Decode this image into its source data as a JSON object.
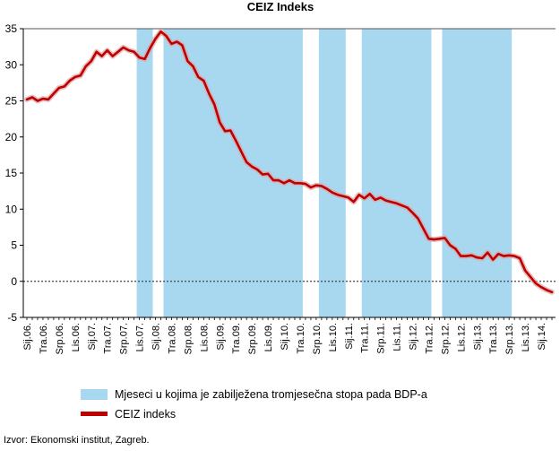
{
  "chart_data": {
    "type": "line",
    "title": "CEIZ Indeks",
    "xlabel": "",
    "ylabel": "",
    "ylim": [
      -5,
      35
    ],
    "yticks": [
      -5,
      0,
      5,
      10,
      15,
      20,
      25,
      30,
      35
    ],
    "grid": "horizontal dashed at 0, top border",
    "legend_position": "bottom",
    "x_tick_labels": [
      "Sij.06.",
      "Tra.06.",
      "Srp.06.",
      "Lis.06.",
      "Sij.07.",
      "Tra.07.",
      "Srp.07.",
      "Lis.07.",
      "Sij.08.",
      "Tra.08.",
      "Srp.08.",
      "Lis.08.",
      "Sij.09.",
      "Tra.09.",
      "Srp.09.",
      "Lis.09.",
      "Sij.10.",
      "Tra.10.",
      "Srp.10.",
      "Lis.10.",
      "Sij.11.",
      "Tra.11.",
      "Srp.11.",
      "Lis.11.",
      "Sij.12.",
      "Tra.12.",
      "Srp.12.",
      "Lis.12.",
      "Sij.13.",
      "Tra.13.",
      "Srp.13.",
      "Lis.13.",
      "Sij.14."
    ],
    "x_labels_monthly_every": 3,
    "recession_shading": [
      {
        "from_month_index": 21,
        "to_month_index": 23
      },
      {
        "from_month_index": 26,
        "to_month_index": 51
      },
      {
        "from_month_index": 55,
        "to_month_index": 59
      },
      {
        "from_month_index": 63,
        "to_month_index": 75
      },
      {
        "from_month_index": 78,
        "to_month_index": 90
      }
    ],
    "series": [
      {
        "name": "CEIZ indeks",
        "color": "#c00000",
        "values": [
          25.2,
          25.5,
          25.0,
          25.3,
          25.2,
          26.0,
          26.8,
          27.0,
          27.8,
          28.3,
          28.5,
          29.8,
          30.5,
          31.8,
          31.2,
          32.0,
          31.2,
          31.8,
          32.4,
          32.0,
          31.8,
          31.0,
          30.8,
          32.3,
          33.6,
          34.6,
          34.0,
          32.9,
          33.2,
          32.7,
          30.5,
          29.8,
          28.3,
          27.8,
          26.0,
          24.5,
          22.0,
          20.8,
          20.9,
          19.5,
          18.0,
          16.5,
          15.9,
          15.5,
          14.8,
          14.9,
          14.0,
          14.0,
          13.6,
          14.0,
          13.6,
          13.6,
          13.5,
          13.0,
          13.3,
          13.2,
          12.8,
          12.3,
          12.0,
          11.8,
          11.6,
          11.0,
          12.0,
          11.5,
          12.1,
          11.3,
          11.6,
          11.2,
          11.0,
          10.8,
          10.5,
          10.2,
          9.5,
          8.7,
          7.3,
          5.9,
          5.8,
          5.9,
          6.0,
          5.0,
          4.5,
          3.5,
          3.5,
          3.6,
          3.3,
          3.2,
          4.0,
          3.0,
          3.8,
          3.5,
          3.6,
          3.5,
          3.2,
          1.5,
          0.6,
          -0.3,
          -0.8,
          -1.2,
          -1.5
        ]
      }
    ],
    "shading_color": "#a8d8f0"
  },
  "legend": {
    "items": [
      {
        "label": "Mjeseci u kojima je zabilježena tromjesečna stopa pada BDP-a",
        "color": "#a8d8f0"
      },
      {
        "label": "CEIZ indeks",
        "color": "#c00000"
      }
    ]
  },
  "source": "Izvor: Ekonomski institut, Zagreb."
}
